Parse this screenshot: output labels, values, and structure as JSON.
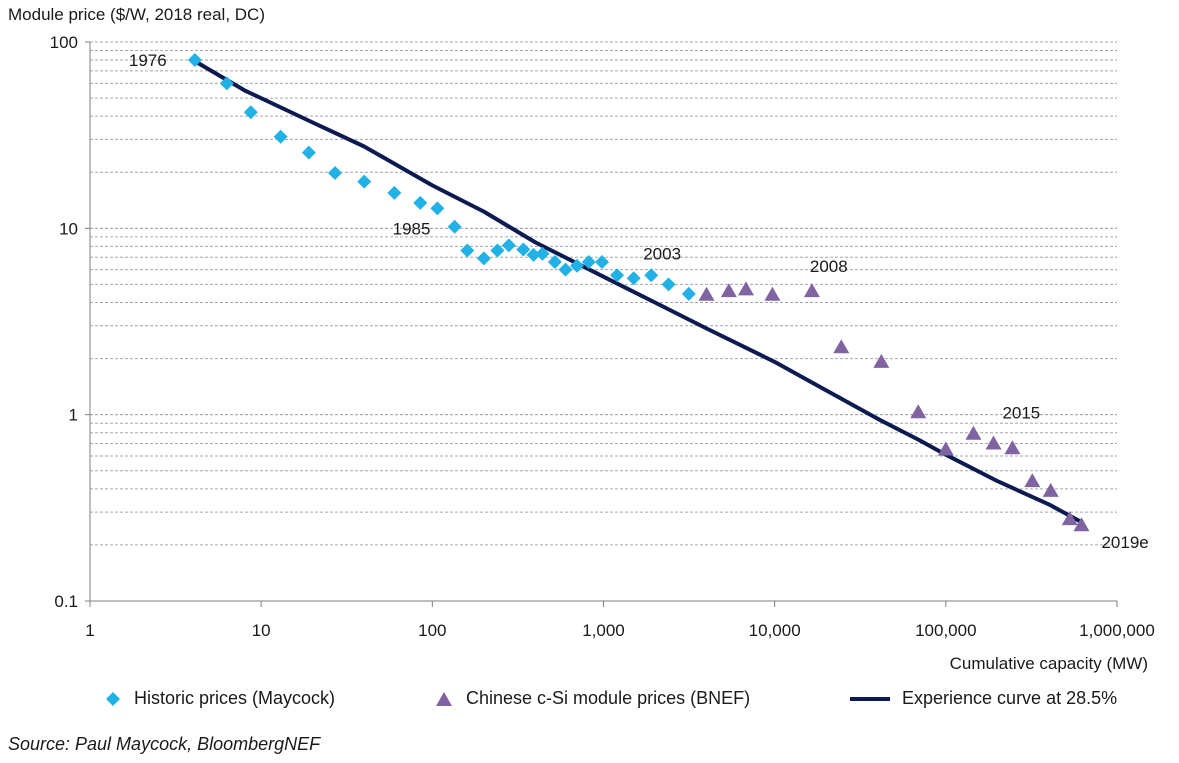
{
  "chart_data": {
    "type": "scatter",
    "ylabel": "Module price ($/W, 2018 real, DC)",
    "xlabel": "Cumulative capacity (MW)",
    "x_scale": "log",
    "y_scale": "log",
    "xlim": [
      1,
      1000000
    ],
    "ylim": [
      0.1,
      100
    ],
    "x_ticks": [
      1,
      10,
      100,
      1000,
      10000,
      100000,
      1000000
    ],
    "x_tick_labels": [
      "1",
      "10",
      "100",
      "1,000",
      "10,000",
      "100,000",
      "1,000,000"
    ],
    "y_ticks": [
      0.1,
      1,
      10,
      100
    ],
    "y_tick_labels": [
      "0.1",
      "1",
      "10",
      "100"
    ],
    "grid": "horizontal minor log",
    "legend_position": "bottom",
    "series": [
      {
        "name": "Historic prices (Maycock)",
        "kind": "scatter",
        "marker": "diamond",
        "color": "#22b1e6",
        "points": [
          [
            4.1,
            80
          ],
          [
            6.3,
            60
          ],
          [
            8.7,
            42
          ],
          [
            13,
            31
          ],
          [
            19,
            25.5
          ],
          [
            27,
            19.8
          ],
          [
            40,
            17.8
          ],
          [
            60,
            15.5
          ],
          [
            85,
            13.7
          ],
          [
            107,
            12.8
          ],
          [
            135,
            10.2
          ],
          [
            160,
            7.6
          ],
          [
            200,
            6.9
          ],
          [
            240,
            7.6
          ],
          [
            280,
            8.1
          ],
          [
            340,
            7.7
          ],
          [
            390,
            7.2
          ],
          [
            440,
            7.3
          ],
          [
            520,
            6.6
          ],
          [
            600,
            6.0
          ],
          [
            700,
            6.3
          ],
          [
            820,
            6.6
          ],
          [
            980,
            6.6
          ],
          [
            1200,
            5.6
          ],
          [
            1500,
            5.4
          ],
          [
            1900,
            5.6
          ],
          [
            2400,
            5.0
          ],
          [
            3150,
            4.45
          ]
        ]
      },
      {
        "name": "Chinese c-Si module prices (BNEF)",
        "kind": "scatter",
        "marker": "triangle",
        "color": "#8064a2",
        "points": [
          [
            4000,
            4.4
          ],
          [
            5400,
            4.6
          ],
          [
            6800,
            4.7
          ],
          [
            9700,
            4.4
          ],
          [
            16500,
            4.6
          ],
          [
            24500,
            2.3
          ],
          [
            42000,
            1.92
          ],
          [
            69000,
            1.03
          ],
          [
            100000,
            0.65
          ],
          [
            145000,
            0.79
          ],
          [
            190000,
            0.7
          ],
          [
            245000,
            0.66
          ],
          [
            320000,
            0.44
          ],
          [
            410000,
            0.39
          ],
          [
            530000,
            0.275
          ],
          [
            620000,
            0.255
          ]
        ]
      },
      {
        "name": "Experience curve at 28.5%",
        "kind": "line",
        "color": "#0c1a52",
        "points": [
          [
            4,
            80
          ],
          [
            8,
            55
          ],
          [
            20,
            37
          ],
          [
            40,
            27.5
          ],
          [
            100,
            17
          ],
          [
            200,
            12.3
          ],
          [
            400,
            8.4
          ],
          [
            1000,
            5.5
          ],
          [
            2000,
            4.0
          ],
          [
            4000,
            2.9
          ],
          [
            10000,
            1.92
          ],
          [
            20000,
            1.35
          ],
          [
            40000,
            0.95
          ],
          [
            70000,
            0.73
          ],
          [
            100000,
            0.61
          ],
          [
            200000,
            0.44
          ],
          [
            400000,
            0.33
          ],
          [
            620000,
            0.265
          ]
        ]
      }
    ],
    "annotations": [
      {
        "text": "1976",
        "x": 4.1,
        "y": 80
      },
      {
        "text": "1985",
        "x": 135,
        "y": 10.2
      },
      {
        "text": "2003",
        "x": 1900,
        "y": 5.6
      },
      {
        "text": "2008",
        "x": 16500,
        "y": 4.6
      },
      {
        "text": "2015",
        "x": 245000,
        "y": 0.66
      },
      {
        "text": "2019e",
        "x": 620000,
        "y": 0.255
      }
    ]
  },
  "legend": {
    "historic": "Historic prices (Maycock)",
    "chinese": "Chinese c-Si module prices (BNEF)",
    "curve": "Experience curve at 28.5%"
  },
  "source": "Source: Paul Maycock, BloombergNEF"
}
